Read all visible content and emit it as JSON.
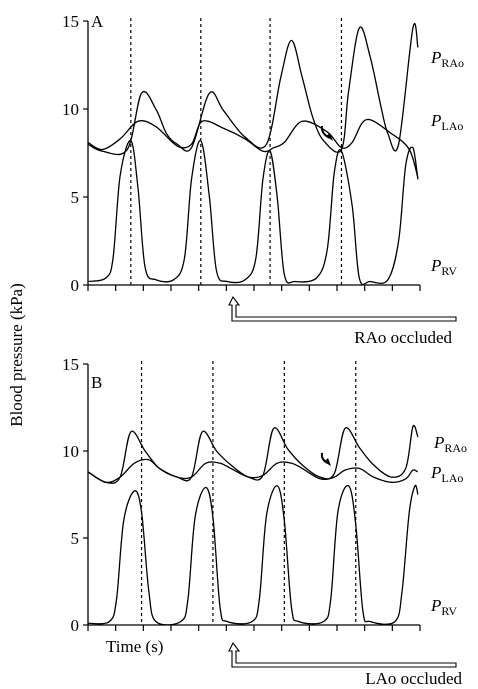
{
  "ylabel": "Blood pressure (kPa)",
  "panels": [
    {
      "letter": "A",
      "occlusion_label": "RAo occluded",
      "trace_labels": [
        {
          "main": "P",
          "sub": "RAo"
        },
        {
          "main": "P",
          "sub": "LAo"
        },
        {
          "main": "P",
          "sub": "RV"
        }
      ],
      "xlabel": ""
    },
    {
      "letter": "B",
      "occlusion_label": "LAo occluded",
      "trace_labels": [
        {
          "main": "P",
          "sub": "RAo"
        },
        {
          "main": "P",
          "sub": "LAo"
        },
        {
          "main": "P",
          "sub": "RV"
        }
      ],
      "xlabel": "Time (s)"
    }
  ],
  "chart_data": [
    {
      "type": "line",
      "panel": "A",
      "title": "",
      "xlabel": "",
      "ylabel": "Blood pressure (kPa)",
      "ylim": [
        0,
        15
      ],
      "yticks": [
        0,
        5,
        10,
        15
      ],
      "x_unit": "beat phase",
      "xlim": [
        0,
        4.65
      ],
      "occlusion_start_beat": 2,
      "end_diastole_markers": [
        0.6,
        1.58,
        2.55,
        3.55
      ],
      "series": [
        {
          "name": "P_RAo",
          "points": [
            [
              0,
              8
            ],
            [
              0.2,
              7.6
            ],
            [
              0.55,
              7.7
            ],
            [
              0.75,
              10.9
            ],
            [
              0.95,
              10.0
            ],
            [
              1.1,
              8.6
            ],
            [
              1.25,
              8.0
            ],
            [
              1.45,
              7.8
            ],
            [
              1.7,
              10.9
            ],
            [
              1.9,
              9.9
            ],
            [
              2.2,
              8.4
            ],
            [
              2.5,
              8.0
            ],
            [
              2.7,
              11.8
            ],
            [
              2.85,
              13.9
            ],
            [
              3.0,
              11.8
            ],
            [
              3.15,
              9.5
            ],
            [
              3.3,
              8.2
            ],
            [
              3.55,
              7.7
            ],
            [
              3.65,
              11.0
            ],
            [
              3.8,
              14.6
            ],
            [
              3.95,
              13.0
            ],
            [
              4.1,
              10.2
            ],
            [
              4.2,
              8.6
            ],
            [
              4.35,
              8.0
            ],
            [
              4.55,
              14.6
            ],
            [
              4.62,
              13.5
            ]
          ]
        },
        {
          "name": "P_LAo",
          "points": [
            [
              0,
              8.1
            ],
            [
              0.2,
              7.7
            ],
            [
              0.45,
              8.3
            ],
            [
              0.7,
              9.3
            ],
            [
              0.95,
              9.0
            ],
            [
              1.25,
              7.9
            ],
            [
              1.45,
              8.0
            ],
            [
              1.6,
              9.3
            ],
            [
              1.9,
              8.9
            ],
            [
              2.2,
              8.3
            ],
            [
              2.45,
              7.6
            ],
            [
              2.6,
              7.8
            ],
            [
              2.75,
              8.1
            ],
            [
              3.0,
              9.3
            ],
            [
              3.35,
              8.7
            ],
            [
              3.55,
              7.8
            ],
            [
              3.7,
              8.1
            ],
            [
              3.9,
              9.4
            ],
            [
              4.25,
              8.6
            ],
            [
              4.5,
              7.7
            ],
            [
              4.62,
              6.1
            ]
          ]
        },
        {
          "name": "P_RV",
          "points": [
            [
              0,
              0.2
            ],
            [
              0.25,
              0.4
            ],
            [
              0.35,
              1.5
            ],
            [
              0.45,
              6.2
            ],
            [
              0.6,
              8.2
            ],
            [
              0.7,
              5.5
            ],
            [
              0.8,
              1.0
            ],
            [
              0.95,
              0.3
            ],
            [
              1.2,
              0.3
            ],
            [
              1.35,
              1.5
            ],
            [
              1.45,
              6.0
            ],
            [
              1.58,
              8.2
            ],
            [
              1.7,
              5.0
            ],
            [
              1.8,
              0.8
            ],
            [
              1.95,
              0.2
            ],
            [
              2.2,
              0.3
            ],
            [
              2.35,
              1.5
            ],
            [
              2.45,
              6.0
            ],
            [
              2.55,
              7.6
            ],
            [
              2.65,
              5.0
            ],
            [
              2.75,
              0.6
            ],
            [
              2.9,
              0.2
            ],
            [
              3.2,
              0.4
            ],
            [
              3.35,
              2.0
            ],
            [
              3.45,
              6.4
            ],
            [
              3.55,
              7.6
            ],
            [
              3.7,
              4.5
            ],
            [
              3.8,
              0.4
            ],
            [
              3.95,
              0.2
            ],
            [
              4.2,
              0.3
            ],
            [
              4.35,
              2.5
            ],
            [
              4.45,
              6.8
            ],
            [
              4.55,
              7.8
            ],
            [
              4.62,
              6.0
            ]
          ]
        }
      ]
    },
    {
      "type": "line",
      "panel": "B",
      "title": "",
      "xlabel": "Time (s)",
      "ylabel": "Blood pressure (kPa)",
      "ylim": [
        0,
        15
      ],
      "yticks": [
        0,
        5,
        10,
        15
      ],
      "x_unit": "beat phase",
      "xlim": [
        0,
        4.65
      ],
      "occlusion_start_beat": 2,
      "end_diastole_markers": [
        0.75,
        1.75,
        2.75,
        3.75
      ],
      "series": [
        {
          "name": "P_RAo",
          "points": [
            [
              0,
              8.8
            ],
            [
              0.25,
              8.2
            ],
            [
              0.45,
              8.5
            ],
            [
              0.6,
              11.1
            ],
            [
              0.8,
              10.0
            ],
            [
              1.0,
              9.0
            ],
            [
              1.25,
              8.5
            ],
            [
              1.45,
              8.5
            ],
            [
              1.6,
              11.1
            ],
            [
              1.8,
              10.0
            ],
            [
              2.0,
              9.2
            ],
            [
              2.25,
              8.5
            ],
            [
              2.45,
              8.6
            ],
            [
              2.6,
              11.3
            ],
            [
              2.8,
              10.1
            ],
            [
              3.0,
              9.2
            ],
            [
              3.25,
              8.5
            ],
            [
              3.45,
              8.7
            ],
            [
              3.6,
              11.3
            ],
            [
              3.8,
              10.2
            ],
            [
              4.0,
              9.2
            ],
            [
              4.25,
              8.5
            ],
            [
              4.45,
              9.0
            ],
            [
              4.55,
              11.4
            ],
            [
              4.62,
              10.8
            ]
          ]
        },
        {
          "name": "P_LAo",
          "points": [
            [
              0,
              8.8
            ],
            [
              0.25,
              8.2
            ],
            [
              0.45,
              8.5
            ],
            [
              0.65,
              9.3
            ],
            [
              0.85,
              9.5
            ],
            [
              1.0,
              9.0
            ],
            [
              1.25,
              8.5
            ],
            [
              1.45,
              8.5
            ],
            [
              1.65,
              9.3
            ],
            [
              1.85,
              9.3
            ],
            [
              2.0,
              9.0
            ],
            [
              2.25,
              8.5
            ],
            [
              2.45,
              8.6
            ],
            [
              2.65,
              9.3
            ],
            [
              2.85,
              9.3
            ],
            [
              3.0,
              9.0
            ],
            [
              3.25,
              8.4
            ],
            [
              3.45,
              8.5
            ],
            [
              3.6,
              8.9
            ],
            [
              3.8,
              9.0
            ],
            [
              4.0,
              8.5
            ],
            [
              4.25,
              8.2
            ],
            [
              4.45,
              8.4
            ],
            [
              4.55,
              8.9
            ],
            [
              4.62,
              8.8
            ]
          ]
        },
        {
          "name": "P_RV",
          "points": [
            [
              0,
              0.1
            ],
            [
              0.3,
              0.2
            ],
            [
              0.4,
              1.5
            ],
            [
              0.5,
              6.0
            ],
            [
              0.65,
              7.7
            ],
            [
              0.75,
              6.5
            ],
            [
              0.85,
              2.0
            ],
            [
              0.95,
              0.2
            ],
            [
              1.3,
              0.2
            ],
            [
              1.4,
              1.5
            ],
            [
              1.5,
              6.2
            ],
            [
              1.65,
              7.9
            ],
            [
              1.75,
              6.2
            ],
            [
              1.85,
              1.0
            ],
            [
              1.95,
              0.2
            ],
            [
              2.3,
              0.2
            ],
            [
              2.4,
              1.5
            ],
            [
              2.5,
              6.3
            ],
            [
              2.65,
              8.0
            ],
            [
              2.75,
              6.0
            ],
            [
              2.85,
              1.0
            ],
            [
              2.95,
              0.2
            ],
            [
              3.3,
              0.2
            ],
            [
              3.4,
              1.5
            ],
            [
              3.5,
              6.5
            ],
            [
              3.65,
              8.0
            ],
            [
              3.75,
              5.8
            ],
            [
              3.85,
              0.8
            ],
            [
              3.95,
              0.2
            ],
            [
              4.3,
              0.2
            ],
            [
              4.4,
              2.0
            ],
            [
              4.5,
              6.5
            ],
            [
              4.58,
              8.0
            ],
            [
              4.62,
              7.5
            ]
          ]
        }
      ]
    }
  ]
}
